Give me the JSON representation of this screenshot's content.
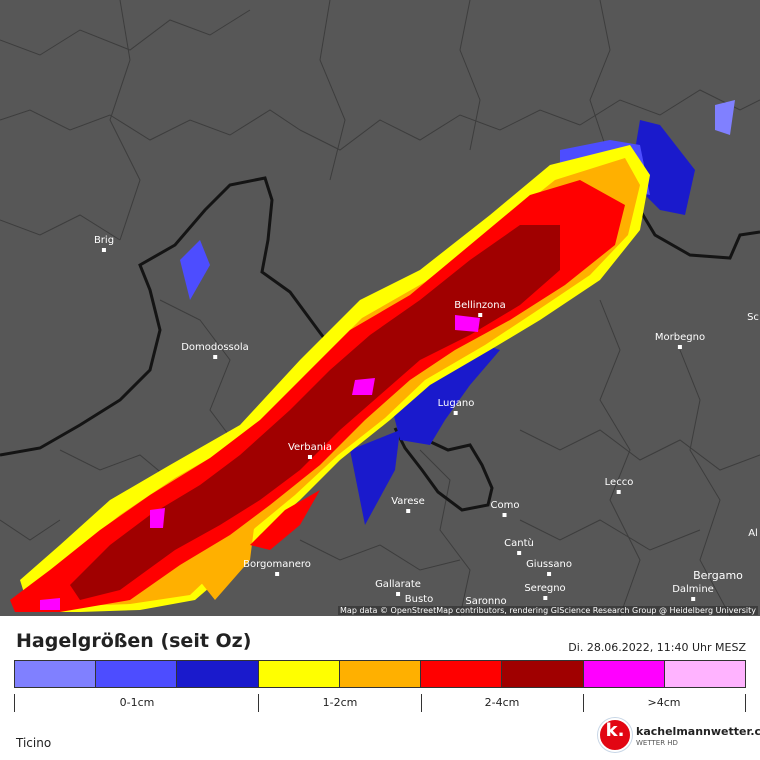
{
  "map": {
    "cities": [
      {
        "name": "Brig",
        "key": "brig"
      },
      {
        "name": "Domodossola",
        "key": "domodossola"
      },
      {
        "name": "Bellinzona",
        "key": "bellinzona"
      },
      {
        "name": "Morbegno",
        "key": "morbegno"
      },
      {
        "name": "Lugano",
        "key": "lugano"
      },
      {
        "name": "Verbania",
        "key": "verbania"
      },
      {
        "name": "Varese",
        "key": "varese"
      },
      {
        "name": "Como",
        "key": "como"
      },
      {
        "name": "Lecco",
        "key": "lecco"
      },
      {
        "name": "Cantù",
        "key": "cantu"
      },
      {
        "name": "Giussano",
        "key": "giussano"
      },
      {
        "name": "Borgomanero",
        "key": "borgomanero"
      },
      {
        "name": "Gallarate",
        "key": "gallarate"
      },
      {
        "name": "Seregno",
        "key": "seregno"
      },
      {
        "name": "Bergamo",
        "key": "bergamo"
      },
      {
        "name": "Dalmine",
        "key": "dalmine"
      },
      {
        "name": "Busto",
        "key": "busto"
      },
      {
        "name": "Saronno",
        "key": "saronno"
      },
      {
        "name": "Sc",
        "key": "sc"
      },
      {
        "name": "Al",
        "key": "al"
      }
    ],
    "attribution": "Map data © OpenStreetMap contributors, rendering GIScience Research Group @ Heidelberg University"
  },
  "legend": {
    "title": "Hagelgrößen (seit Oz)",
    "timestamp": "Di. 28.06.2022, 11:40 Uhr MESZ",
    "colors": [
      "#8080ff",
      "#4d4dff",
      "#1a1acc",
      "#ffff00",
      "#ffb000",
      "#ff0000",
      "#a00000",
      "#ff00ff",
      "#ffb3ff"
    ],
    "ranges": [
      {
        "label": "0-1cm"
      },
      {
        "label": "1-2cm"
      },
      {
        "label": "2-4cm"
      },
      {
        "label": ">4cm"
      }
    ]
  },
  "region": "Ticino",
  "brand": {
    "name": "kachelmannwetter.com",
    "sub": "WETTER HD",
    "mark": "k."
  }
}
